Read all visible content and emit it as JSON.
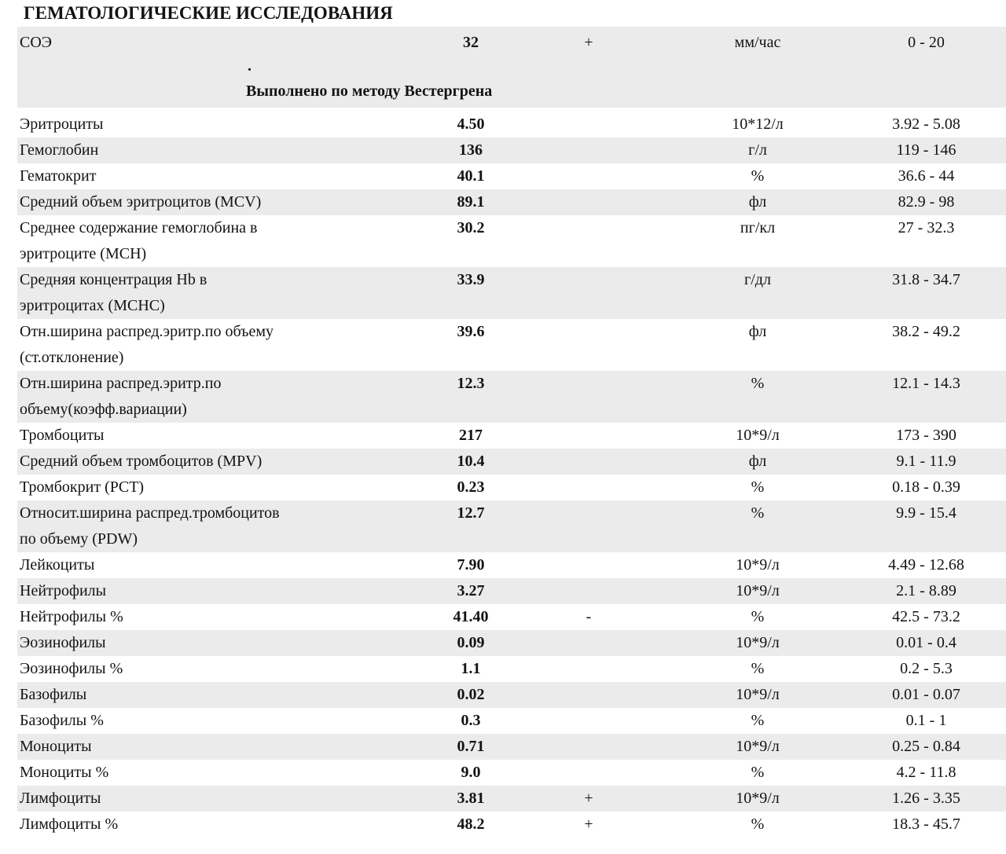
{
  "title": "ГЕМАТОЛОГИЧЕСКИЕ ИССЛЕДОВАНИЯ",
  "colors": {
    "row_shade": "#ebebeb",
    "text": "#131313",
    "background": "#ffffff"
  },
  "esr_block": {
    "row": {
      "name": "СОЭ",
      "value": "32",
      "flag": "+",
      "units": "мм/час",
      "range": "0 - 20"
    },
    "dot": ".",
    "method_note": "Выполнено по методу Вестергрена"
  },
  "table": {
    "rows": [
      {
        "name": "Эритроциты",
        "value": "4.50",
        "flag": "",
        "units": "10*12/л",
        "range": "3.92 - 5.08",
        "shaded": false
      },
      {
        "name": "Гемоглобин",
        "value": "136",
        "flag": "",
        "units": "г/л",
        "range": "119 - 146",
        "shaded": true
      },
      {
        "name": "Гематокрит",
        "value": "40.1",
        "flag": "",
        "units": "%",
        "range": "36.6 - 44",
        "shaded": false
      },
      {
        "name": "Средний объем эритроцитов (MCV)",
        "value": "89.1",
        "flag": "",
        "units": "фл",
        "range": "82.9 - 98",
        "shaded": true
      },
      {
        "name": "Среднее содержание гемоглобина в\nэритроците (MCH)",
        "value": "30.2",
        "flag": "",
        "units": "пг/кл",
        "range": "27 - 32.3",
        "shaded": false
      },
      {
        "name": "Средняя концентрация Hb в\nэритроцитах (MCHC)",
        "value": "33.9",
        "flag": "",
        "units": "г/дл",
        "range": "31.8 - 34.7",
        "shaded": true
      },
      {
        "name": "Отн.ширина распред.эритр.по объему\n(ст.отклонение)",
        "value": "39.6",
        "flag": "",
        "units": "фл",
        "range": "38.2 - 49.2",
        "shaded": false
      },
      {
        "name": "Отн.ширина распред.эритр.по\nобъему(коэфф.вариации)",
        "value": "12.3",
        "flag": "",
        "units": "%",
        "range": "12.1 - 14.3",
        "shaded": true
      },
      {
        "name": "Тромбоциты",
        "value": "217",
        "flag": "",
        "units": "10*9/л",
        "range": "173 - 390",
        "shaded": false
      },
      {
        "name": "Средний объем тромбоцитов (MPV)",
        "value": "10.4",
        "flag": "",
        "units": "фл",
        "range": "9.1 - 11.9",
        "shaded": true
      },
      {
        "name": "Тромбокрит (PCT)",
        "value": "0.23",
        "flag": "",
        "units": "%",
        "range": "0.18 - 0.39",
        "shaded": false
      },
      {
        "name": "Относит.ширина распред.тромбоцитов\nпо объему (PDW)",
        "value": "12.7",
        "flag": "",
        "units": "%",
        "range": "9.9 - 15.4",
        "shaded": true
      },
      {
        "name": "Лейкоциты",
        "value": "7.90",
        "flag": "",
        "units": "10*9/л",
        "range": "4.49 - 12.68",
        "shaded": false
      },
      {
        "name": "Нейтрофилы",
        "value": "3.27",
        "flag": "",
        "units": "10*9/л",
        "range": "2.1 - 8.89",
        "shaded": true
      },
      {
        "name": "Нейтрофилы %",
        "value": "41.40",
        "flag": "-",
        "units": "%",
        "range": "42.5 - 73.2",
        "shaded": false
      },
      {
        "name": "Эозинофилы",
        "value": "0.09",
        "flag": "",
        "units": "10*9/л",
        "range": "0.01 - 0.4",
        "shaded": true
      },
      {
        "name": "Эозинофилы %",
        "value": "1.1",
        "flag": "",
        "units": "%",
        "range": "0.2 - 5.3",
        "shaded": false
      },
      {
        "name": "Базофилы",
        "value": "0.02",
        "flag": "",
        "units": "10*9/л",
        "range": "0.01 - 0.07",
        "shaded": true
      },
      {
        "name": "Базофилы %",
        "value": "0.3",
        "flag": "",
        "units": "%",
        "range": "0.1 - 1",
        "shaded": false
      },
      {
        "name": "Моноциты",
        "value": "0.71",
        "flag": "",
        "units": "10*9/л",
        "range": "0.25 - 0.84",
        "shaded": true
      },
      {
        "name": "Моноциты %",
        "value": "9.0",
        "flag": "",
        "units": "%",
        "range": "4.2 - 11.8",
        "shaded": false
      },
      {
        "name": "Лимфоциты",
        "value": "3.81",
        "flag": "+",
        "units": "10*9/л",
        "range": "1.26 - 3.35",
        "shaded": true
      },
      {
        "name": "Лимфоциты %",
        "value": "48.2",
        "flag": "+",
        "units": "%",
        "range": "18.3 - 45.7",
        "shaded": false
      }
    ]
  }
}
